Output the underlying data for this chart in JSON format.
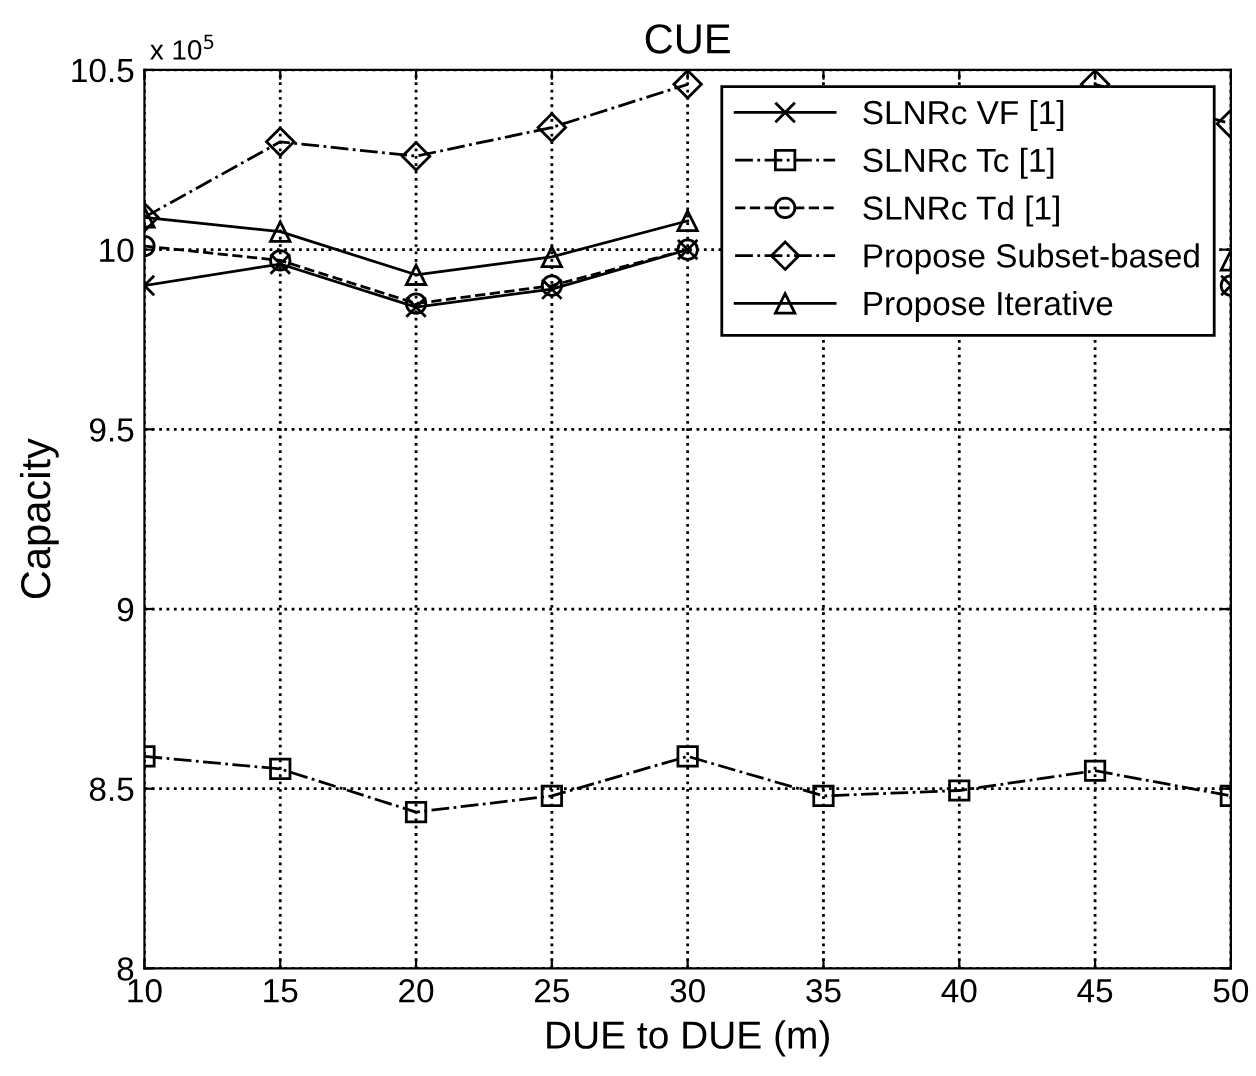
{
  "chart_data": {
    "type": "line",
    "title": "CUE",
    "xlabel": "DUE to DUE (m)",
    "ylabel": "Capacity",
    "annotations": [
      "x 10$^{5}$"
    ],
    "x": [
      10,
      15,
      20,
      25,
      30,
      35,
      40,
      45,
      50
    ],
    "series": [
      {
        "name": "SLNRc VF [1]",
        "color": "#000000",
        "marker": "cross",
        "line_style": "solid",
        "values": [
          9.9,
          9.96,
          9.84,
          9.89,
          10.0,
          null,
          null,
          null,
          9.9
        ]
      },
      {
        "name": "SLNRc Tc [1]",
        "color": "#000000",
        "marker": "square",
        "line_style": "dashdot",
        "values": [
          8.59,
          8.555,
          8.435,
          8.48,
          8.59,
          8.48,
          8.495,
          8.55,
          8.48
        ]
      },
      {
        "name": "SLNRc Td [1]",
        "color": "#000000",
        "marker": "circle",
        "line_style": "dashed",
        "values": [
          10.01,
          9.97,
          9.85,
          9.9,
          10.0,
          null,
          null,
          null,
          9.9
        ]
      },
      {
        "name": "Propose Subset-based",
        "color": "#000000",
        "marker": "diamond",
        "line_style": "dashdot",
        "values": [
          10.09,
          10.3,
          10.26,
          10.34,
          10.46,
          null,
          null,
          10.46,
          10.35
        ]
      },
      {
        "name": "Propose Iterative",
        "color": "#000000",
        "marker": "triangle",
        "line_style": "solid",
        "values": [
          10.09,
          10.05,
          9.93,
          9.98,
          10.08,
          null,
          null,
          null,
          9.97
        ]
      }
    ],
    "xlim": [
      10,
      50
    ],
    "xticks": [
      10,
      15,
      20,
      25,
      30,
      35,
      40,
      45,
      50
    ],
    "ylim": [
      8,
      10.5
    ],
    "yticks": [
      8,
      8.5,
      9,
      9.5,
      10,
      10.5
    ],
    "grid": true,
    "legend": "top right"
  }
}
